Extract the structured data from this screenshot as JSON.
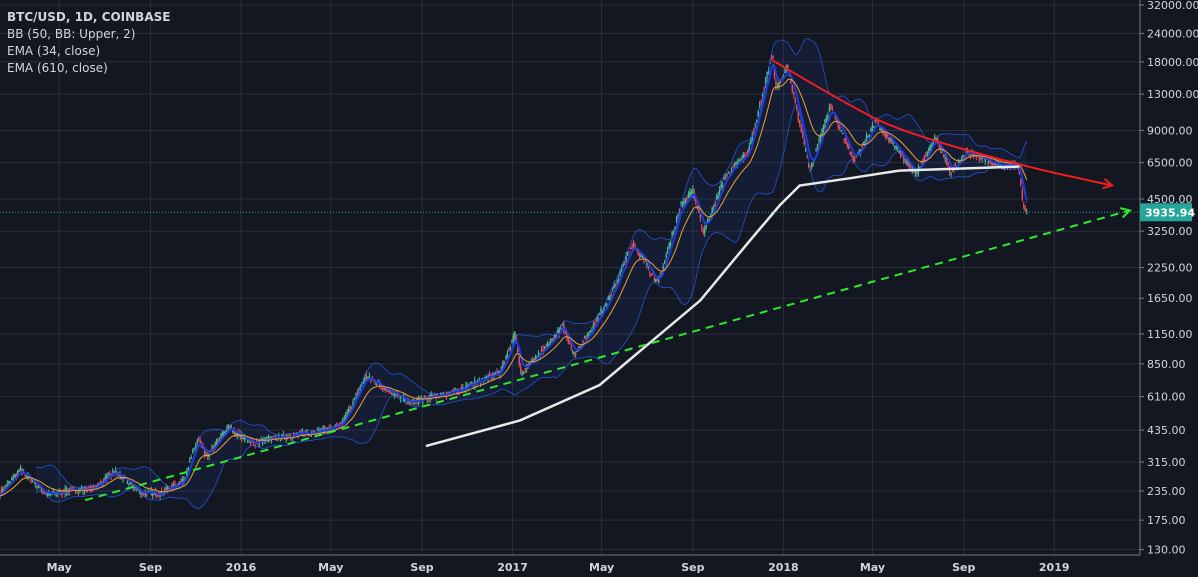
{
  "legend": {
    "title": "BTC/USD, 1D, COINBASE",
    "indicators": [
      "BB (50, BB: Upper, 2)",
      "EMA (34, close)",
      "EMA (610, close)"
    ]
  },
  "colors": {
    "background": "#131722",
    "grid": "#2a2e39",
    "up": "#53b987",
    "down": "#eb4d5c",
    "ema34": "#f0a030",
    "bb": "#2962ff",
    "basis": "#1e3cd8",
    "ema610": "#e8e8e8",
    "support_trendline": "#2ee82e",
    "resistance_trendline": "#f21d1d",
    "last_price": "#26a69a"
  },
  "chart_data": {
    "type": "candlestick",
    "title": "BTC/USD, 1D, COINBASE",
    "y_scale": "log",
    "ylim": [
      130,
      32000
    ],
    "grid": true,
    "legend_position": "top-left",
    "y_ticks": [
      "32000.00",
      "24000.00",
      "18000.00",
      "13000.00",
      "9000.00",
      "6500.00",
      "4500.00",
      "3250.00",
      "2250.00",
      "1650.00",
      "1150.00",
      "850.00",
      "610.00",
      "435.00",
      "315.00",
      "235.00",
      "175.00",
      "130.00"
    ],
    "x_ticks": [
      {
        "label": "May",
        "date": "2015-05-01"
      },
      {
        "label": "Sep",
        "date": "2015-09-01"
      },
      {
        "label": "2016",
        "date": "2016-01-01"
      },
      {
        "label": "May",
        "date": "2016-05-01"
      },
      {
        "label": "Sep",
        "date": "2016-09-01"
      },
      {
        "label": "2017",
        "date": "2017-01-01"
      },
      {
        "label": "May",
        "date": "2017-05-01"
      },
      {
        "label": "Sep",
        "date": "2017-09-01"
      },
      {
        "label": "2018",
        "date": "2018-01-01"
      },
      {
        "label": "May",
        "date": "2018-05-01"
      },
      {
        "label": "Sep",
        "date": "2018-09-01"
      },
      {
        "label": "2019",
        "date": "2019-01-01"
      }
    ],
    "price": [
      [
        "2015-02-10",
        230
      ],
      [
        "2015-03-10",
        290
      ],
      [
        "2015-04-15",
        225
      ],
      [
        "2015-05-15",
        237
      ],
      [
        "2015-06-15",
        240
      ],
      [
        "2015-07-15",
        285
      ],
      [
        "2015-08-20",
        230
      ],
      [
        "2015-09-15",
        230
      ],
      [
        "2015-10-15",
        260
      ],
      [
        "2015-11-04",
        400
      ],
      [
        "2015-11-15",
        330
      ],
      [
        "2015-12-15",
        450
      ],
      [
        "2016-01-15",
        380
      ],
      [
        "2016-02-15",
        400
      ],
      [
        "2016-03-15",
        415
      ],
      [
        "2016-04-15",
        430
      ],
      [
        "2016-05-15",
        455
      ],
      [
        "2016-06-17",
        750
      ],
      [
        "2016-07-15",
        660
      ],
      [
        "2016-08-15",
        570
      ],
      [
        "2016-09-15",
        610
      ],
      [
        "2016-10-15",
        640
      ],
      [
        "2016-11-15",
        710
      ],
      [
        "2016-12-15",
        780
      ],
      [
        "2017-01-04",
        1150
      ],
      [
        "2017-01-12",
        780
      ],
      [
        "2017-02-15",
        1000
      ],
      [
        "2017-03-10",
        1250
      ],
      [
        "2017-03-25",
        930
      ],
      [
        "2017-04-15",
        1180
      ],
      [
        "2017-05-15",
        1750
      ],
      [
        "2017-06-12",
        2900
      ],
      [
        "2017-07-16",
        1900
      ],
      [
        "2017-08-15",
        4200
      ],
      [
        "2017-09-01",
        4900
      ],
      [
        "2017-09-15",
        3200
      ],
      [
        "2017-10-15",
        5700
      ],
      [
        "2017-11-15",
        7300
      ],
      [
        "2017-12-17",
        19700
      ],
      [
        "2017-12-22",
        13500
      ],
      [
        "2018-01-06",
        17100
      ],
      [
        "2018-02-06",
        6000
      ],
      [
        "2018-03-05",
        11500
      ],
      [
        "2018-04-06",
        6600
      ],
      [
        "2018-05-05",
        9800
      ],
      [
        "2018-06-29",
        5800
      ],
      [
        "2018-07-25",
        8400
      ],
      [
        "2018-08-14",
        5900
      ],
      [
        "2018-09-05",
        7300
      ],
      [
        "2018-10-15",
        6400
      ],
      [
        "2018-11-13",
        6300
      ],
      [
        "2018-11-20",
        4300
      ],
      [
        "2018-11-25",
        3935.94
      ]
    ],
    "ema610": [
      [
        "2016-09-06",
        370
      ],
      [
        "2017-01-11",
        480
      ],
      [
        "2017-04-28",
        685
      ],
      [
        "2017-09-11",
        1615
      ],
      [
        "2017-11-17",
        2960
      ],
      [
        "2017-12-27",
        4220
      ],
      [
        "2018-01-23",
        5160
      ],
      [
        "2018-03-31",
        5550
      ],
      [
        "2018-06-06",
        6000
      ],
      [
        "2018-10-19",
        6200
      ],
      [
        "2018-11-15",
        6250
      ]
    ],
    "support_trendline": [
      [
        "2015-06-05",
        214
      ],
      [
        "2019-04-13",
        4010
      ]
    ],
    "resistance_trendline": [
      [
        "2017-12-17",
        18300
      ],
      [
        "2018-03-31",
        11600
      ],
      [
        "2018-06-05",
        9000
      ],
      [
        "2018-11-15",
        6330
      ],
      [
        "2019-03-20",
        5160
      ]
    ],
    "last_price": "3935.94"
  }
}
